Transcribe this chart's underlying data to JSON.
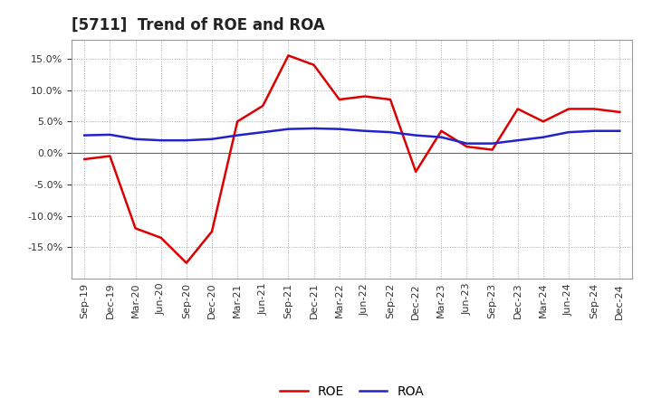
{
  "title": "[5711]  Trend of ROE and ROA",
  "x_labels": [
    "Sep-19",
    "Dec-19",
    "Mar-20",
    "Jun-20",
    "Sep-20",
    "Dec-20",
    "Mar-21",
    "Jun-21",
    "Sep-21",
    "Dec-21",
    "Mar-22",
    "Jun-22",
    "Sep-22",
    "Dec-22",
    "Mar-23",
    "Jun-23",
    "Sep-23",
    "Dec-23",
    "Mar-24",
    "Jun-24",
    "Sep-24",
    "Dec-24"
  ],
  "roe": [
    -1.0,
    -0.5,
    -12.0,
    -13.5,
    -17.5,
    -12.5,
    5.0,
    7.5,
    15.5,
    14.0,
    8.5,
    9.0,
    8.5,
    -3.0,
    3.5,
    1.0,
    0.5,
    7.0,
    5.0,
    7.0,
    7.0,
    6.5
  ],
  "roa": [
    2.8,
    2.9,
    2.2,
    2.0,
    2.0,
    2.2,
    2.8,
    3.3,
    3.8,
    3.9,
    3.8,
    3.5,
    3.3,
    2.8,
    2.5,
    1.5,
    1.5,
    2.0,
    2.5,
    3.3,
    3.5,
    3.5
  ],
  "roe_color": "#dd0000",
  "roa_color": "#2222cc",
  "ylim": [
    -20.0,
    18.0
  ],
  "yticks": [
    -15.0,
    -10.0,
    -5.0,
    0.0,
    5.0,
    10.0,
    15.0
  ],
  "bg_color": "#ffffff",
  "plot_bg_color": "#ffffff",
  "grid_color": "#aaaaaa",
  "title_fontsize": 12,
  "axis_fontsize": 8,
  "legend_fontsize": 10,
  "line_width": 1.8
}
